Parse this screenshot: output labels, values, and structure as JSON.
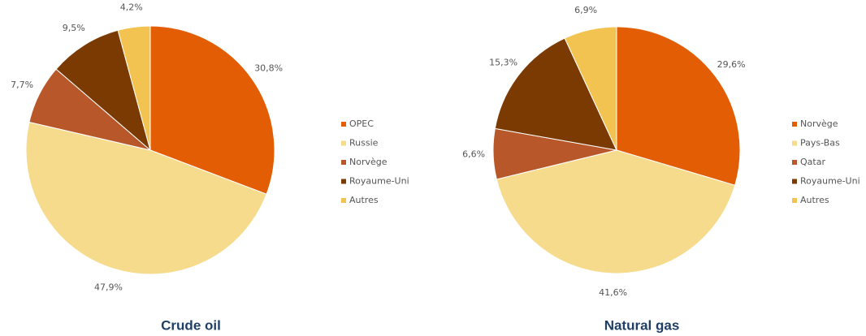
{
  "chart_data": [
    {
      "type": "pie",
      "title": "Crude oil",
      "categories": [
        "OPEC",
        "Russie",
        "Norvège",
        "Royaume-Uni",
        "Autres"
      ],
      "values": [
        30.8,
        47.9,
        7.7,
        9.5,
        4.2
      ],
      "value_labels": [
        "30,8%",
        "47,9%",
        "7,7%",
        "9,5%",
        "4,2%"
      ],
      "colors": [
        "#e35d04",
        "#f6db8c",
        "#b8582a",
        "#7b3a02",
        "#f2c350"
      ]
    },
    {
      "type": "pie",
      "title": "Natural gas",
      "categories": [
        "Norvège",
        "Pays-Bas",
        "Qatar",
        "Royaume-Uni",
        "Autres"
      ],
      "values": [
        29.6,
        41.6,
        6.6,
        15.3,
        6.9
      ],
      "value_labels": [
        "29,6%",
        "41,6%",
        "6,6%",
        "15,3%",
        "6,9%"
      ],
      "colors": [
        "#e35d04",
        "#f6db8c",
        "#b8582a",
        "#7b3a02",
        "#f2c350"
      ]
    }
  ]
}
